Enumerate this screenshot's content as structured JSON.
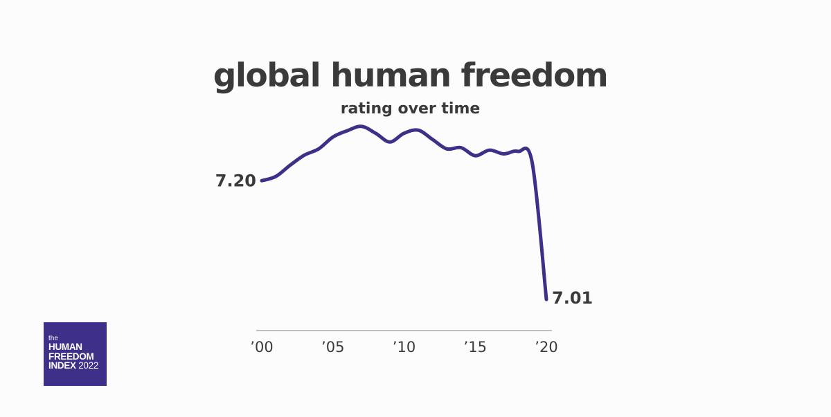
{
  "header": {
    "title": "global human freedom",
    "subtitle": "rating over time"
  },
  "logo": {
    "prefix": "the",
    "line1": "HUMAN",
    "line2": "FREEDOM",
    "line3": "INDEX",
    "year": "2022"
  },
  "colors": {
    "line": "#3e2f88",
    "text": "#3a3a3c",
    "axis": "#9a9a9a",
    "logo_bg": "#3e2f88"
  },
  "chart_data": {
    "type": "line",
    "title": "global human freedom",
    "subtitle": "rating over time",
    "xlabel": "",
    "ylabel": "",
    "x": [
      2000,
      2001,
      2002,
      2003,
      2004,
      2005,
      2006,
      2007,
      2008,
      2009,
      2010,
      2011,
      2012,
      2013,
      2014,
      2015,
      2016,
      2017,
      2018,
      2019,
      2020
    ],
    "series": [
      {
        "values": [
          7.2,
          7.207,
          7.225,
          7.241,
          7.251,
          7.27,
          7.28,
          7.287,
          7.276,
          7.262,
          7.276,
          7.281,
          7.266,
          7.251,
          7.253,
          7.24,
          7.249,
          7.243,
          7.247,
          7.229,
          7.01
        ]
      }
    ],
    "xticks": [
      "’00",
      "’05",
      "’10",
      "’15",
      "’20"
    ],
    "xtick_values": [
      2000,
      2005,
      2010,
      2015,
      2020
    ],
    "start_label": "7.20",
    "end_label": "7.01",
    "xlim": [
      2000,
      2020
    ],
    "ylim": [
      7.0,
      7.3
    ],
    "grid": false,
    "legend": "none"
  }
}
